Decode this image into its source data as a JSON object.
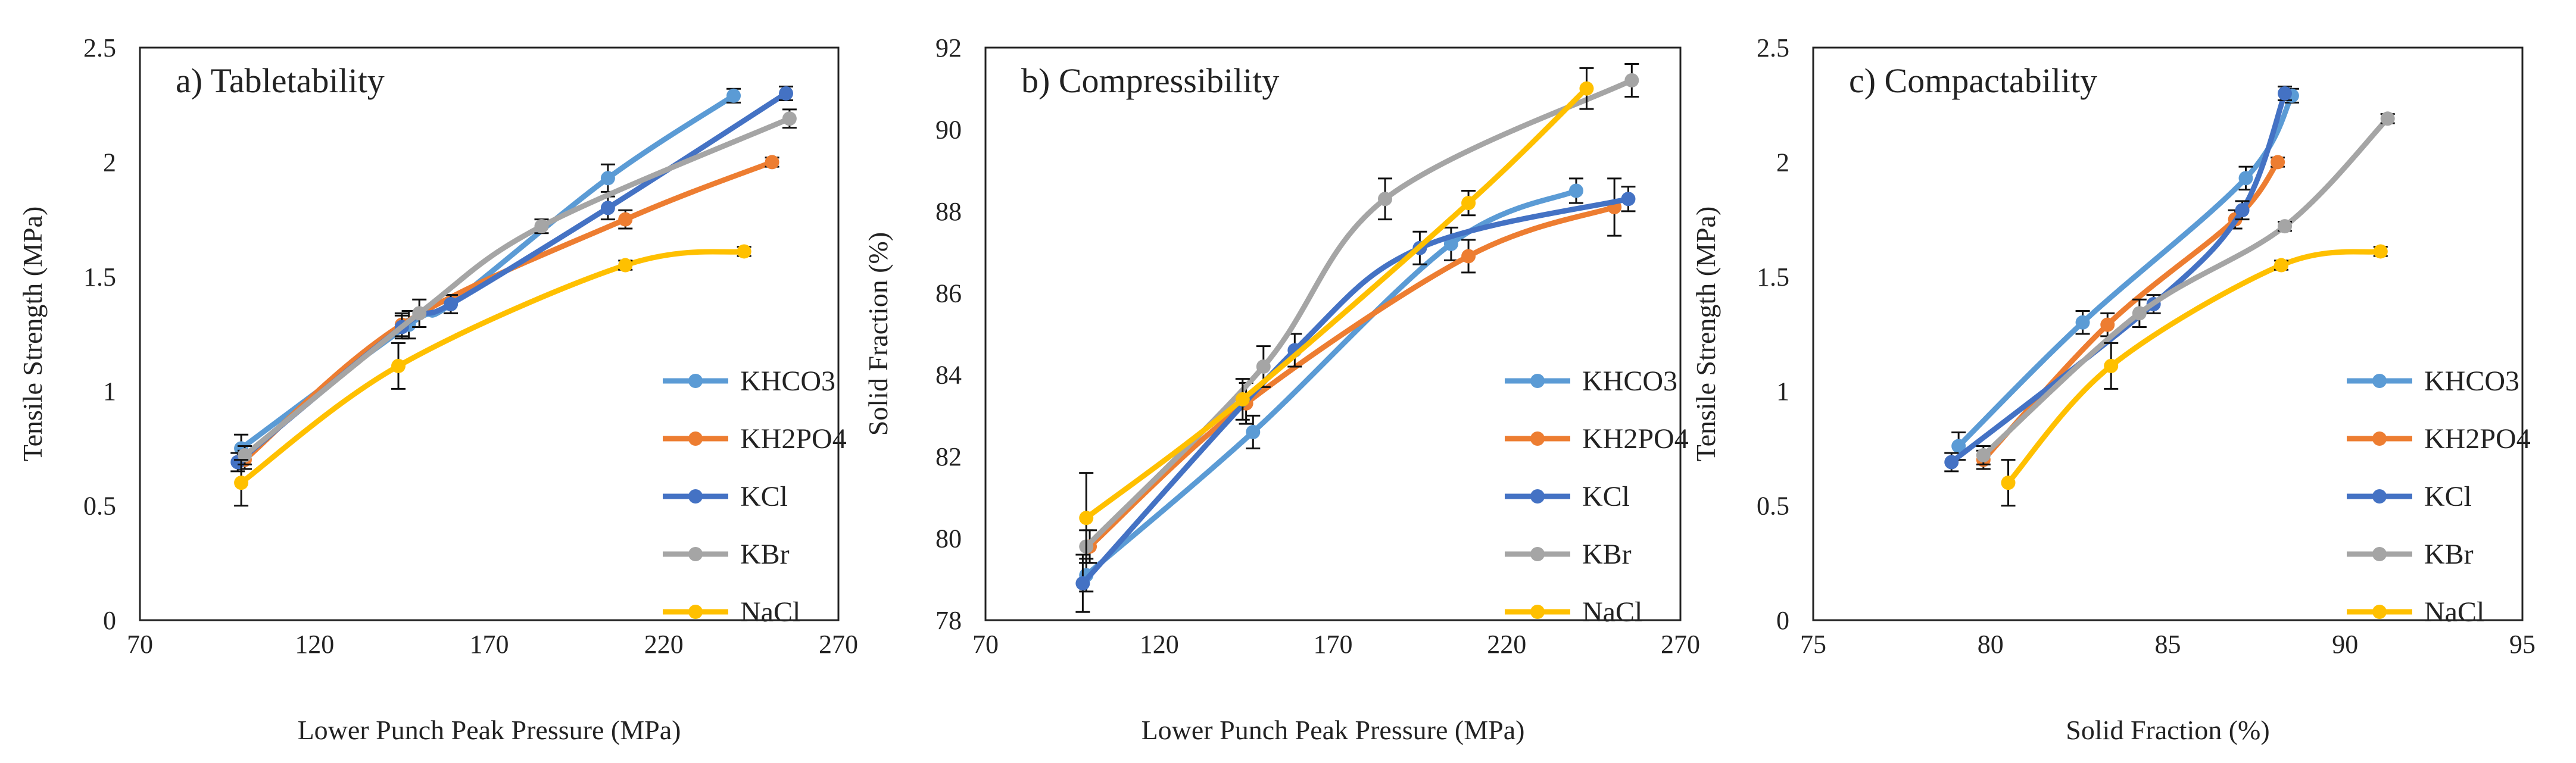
{
  "chart_data": [
    {
      "panel_id": "tabletability",
      "type": "line",
      "title": "a) Tabletability",
      "xlabel": "Lower Punch Peak Pressure (MPa)",
      "ylabel": "Tensile Strength (MPa)",
      "xlim": [
        70,
        270
      ],
      "ylim": [
        0,
        2.5
      ],
      "xticks": [
        70,
        120,
        170,
        220,
        270
      ],
      "yticks": [
        0,
        0.5,
        1,
        1.5,
        2,
        2.5
      ],
      "ytick_labels": [
        "0",
        "0.5",
        "1",
        "1.5",
        "2",
        "2.5"
      ],
      "grid": false,
      "legend_position": "right-middle",
      "series": [
        {
          "name": "KHCO3",
          "color": "#5B9BD5",
          "x": [
            99,
            147,
            159,
            204,
            240
          ],
          "y": [
            0.75,
            1.29,
            1.38,
            1.93,
            2.29
          ],
          "err": [
            0.06,
            0.06,
            0.04,
            0.06,
            0.03
          ]
        },
        {
          "name": "KH2PO4",
          "color": "#ED7D31",
          "x": [
            100,
            145,
            209,
            251
          ],
          "y": [
            0.7,
            1.29,
            1.75,
            2.0
          ],
          "err": [
            0.04,
            0.05,
            0.04,
            0.02
          ]
        },
        {
          "name": "KCl",
          "color": "#4472C4",
          "x": [
            98,
            145,
            159,
            204,
            255
          ],
          "y": [
            0.69,
            1.28,
            1.38,
            1.8,
            2.3
          ],
          "err": [
            0.04,
            0.05,
            0.04,
            0.05,
            0.03
          ]
        },
        {
          "name": "KBr",
          "color": "#A5A5A5",
          "x": [
            100,
            150,
            185,
            256
          ],
          "y": [
            0.72,
            1.34,
            1.72,
            2.19
          ],
          "err": [
            0.04,
            0.06,
            0.03,
            0.04
          ]
        },
        {
          "name": "NaCl",
          "color": "#FFC000",
          "x": [
            99,
            144,
            209,
            243
          ],
          "y": [
            0.6,
            1.11,
            1.55,
            1.61
          ],
          "err": [
            0.1,
            0.1,
            0.02,
            0.02
          ]
        }
      ]
    },
    {
      "panel_id": "compressibility",
      "type": "line",
      "title": "b) Compressibility",
      "xlabel": "Lower Punch Peak Pressure (MPa)",
      "ylabel": "Solid Fraction (%)",
      "xlim": [
        70,
        270
      ],
      "ylim": [
        78,
        92
      ],
      "xticks": [
        70,
        120,
        170,
        220,
        270
      ],
      "yticks": [
        78,
        80,
        82,
        84,
        86,
        88,
        90,
        92
      ],
      "ytick_labels": [
        "78",
        "80",
        "82",
        "84",
        "86",
        "88",
        "90",
        "92"
      ],
      "grid": false,
      "legend_position": "right-middle",
      "series": [
        {
          "name": "KHCO3",
          "color": "#5B9BD5",
          "x": [
            99,
            147,
            204,
            240
          ],
          "y": [
            79.1,
            82.6,
            87.2,
            88.5
          ],
          "err": [
            0.4,
            0.4,
            0.4,
            0.3
          ]
        },
        {
          "name": "KH2PO4",
          "color": "#ED7D31",
          "x": [
            100,
            145,
            209,
            251
          ],
          "y": [
            79.8,
            83.3,
            86.9,
            88.1
          ],
          "err": [
            0.4,
            0.5,
            0.4,
            0.7
          ]
        },
        {
          "name": "KCl",
          "color": "#4472C4",
          "x": [
            98,
            159,
            195,
            255
          ],
          "y": [
            78.9,
            84.6,
            87.1,
            88.3
          ],
          "err": [
            0.7,
            0.4,
            0.4,
            0.3
          ]
        },
        {
          "name": "KBr",
          "color": "#A5A5A5",
          "x": [
            99,
            150,
            185,
            256
          ],
          "y": [
            79.8,
            84.2,
            88.3,
            91.2
          ],
          "err": [
            0.4,
            0.5,
            0.5,
            0.4
          ]
        },
        {
          "name": "NaCl",
          "color": "#FFC000",
          "x": [
            99,
            144,
            209,
            243
          ],
          "y": [
            80.5,
            83.4,
            88.2,
            91.0
          ],
          "err": [
            1.1,
            0.5,
            0.3,
            0.5
          ]
        }
      ]
    },
    {
      "panel_id": "compactability",
      "type": "line",
      "title": "c) Compactability",
      "xlabel": "Solid Fraction (%)",
      "ylabel": "Tensile Strength (MPa)",
      "xlim": [
        75,
        95
      ],
      "ylim": [
        0,
        2.5
      ],
      "xticks": [
        75,
        80,
        85,
        90,
        95
      ],
      "yticks": [
        0,
        0.5,
        1,
        1.5,
        2,
        2.5
      ],
      "ytick_labels": [
        "0",
        "0.5",
        "1",
        "1.5",
        "2",
        "2.5"
      ],
      "grid": false,
      "legend_position": "right-middle",
      "series": [
        {
          "name": "KHCO3",
          "color": "#5B9BD5",
          "x": [
            79.1,
            82.6,
            87.2,
            88.5
          ],
          "y": [
            0.76,
            1.3,
            1.93,
            2.29
          ],
          "err": [
            0.06,
            0.05,
            0.05,
            0.03
          ]
        },
        {
          "name": "KH2PO4",
          "color": "#ED7D31",
          "x": [
            79.8,
            83.3,
            86.9,
            88.1
          ],
          "y": [
            0.7,
            1.29,
            1.75,
            2.0
          ],
          "err": [
            0.04,
            0.05,
            0.04,
            0.02
          ]
        },
        {
          "name": "KCl",
          "color": "#4472C4",
          "x": [
            78.9,
            84.6,
            87.1,
            88.3
          ],
          "y": [
            0.69,
            1.38,
            1.79,
            2.3
          ],
          "err": [
            0.04,
            0.04,
            0.04,
            0.03
          ]
        },
        {
          "name": "KBr",
          "color": "#A5A5A5",
          "x": [
            79.8,
            84.2,
            88.3,
            91.2
          ],
          "y": [
            0.72,
            1.34,
            1.72,
            2.19
          ],
          "err": [
            0.04,
            0.06,
            0.02,
            0.02
          ]
        },
        {
          "name": "NaCl",
          "color": "#FFC000",
          "x": [
            80.5,
            83.4,
            88.2,
            91.0
          ],
          "y": [
            0.6,
            1.11,
            1.55,
            1.61
          ],
          "err": [
            0.1,
            0.1,
            0.02,
            0.02
          ]
        }
      ]
    }
  ]
}
